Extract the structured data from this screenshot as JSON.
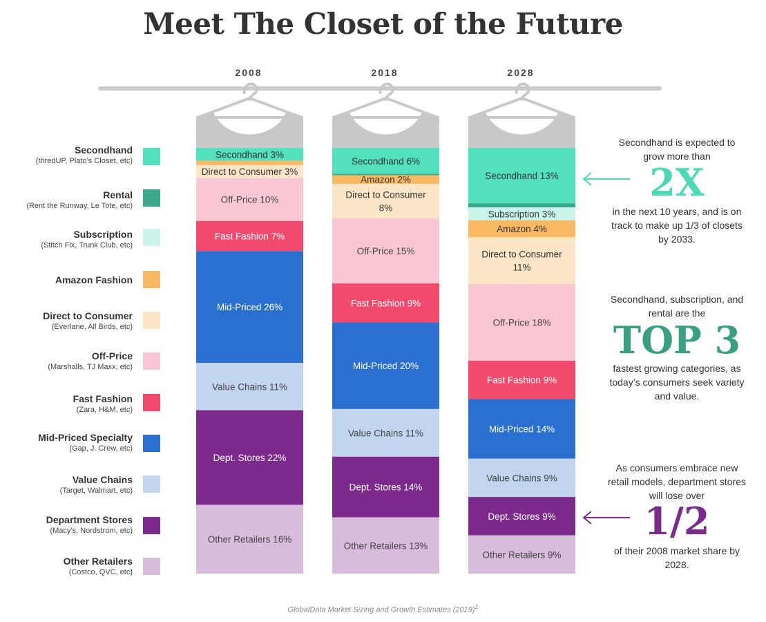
{
  "title": "Meet The Closet of the Future",
  "source": "GlobalData Market Sizing and Growth Estimates (2019)",
  "source_sup": "1",
  "legend": [
    {
      "name": "Secondhand",
      "sub": "(thredUP, Plato’s Closet, etc)",
      "color": "#52e0bd"
    },
    {
      "name": "Rental",
      "sub": "(Rent the Runway, Le Tote, etc)",
      "color": "#3aa88a"
    },
    {
      "name": "Subscription",
      "sub": "(Stitch Fix, Trunk Club, etc)",
      "color": "#c9f5ea"
    },
    {
      "name": "Amazon Fashion",
      "sub": "",
      "color": "#f9b864"
    },
    {
      "name": "Direct to Consumer",
      "sub": "(Everlane, All Birds, etc)",
      "color": "#fde6c7"
    },
    {
      "name": "Off-Price",
      "sub": "(Marshalls, TJ Maxx, etc)",
      "color": "#f9c7d3"
    },
    {
      "name": "Fast Fashion",
      "sub": "(Zara, H&M, etc)",
      "color": "#f24a6c"
    },
    {
      "name": "Mid-Priced Specialty",
      "sub": "(Gap, J. Crew, etc)",
      "color": "#2b70d1"
    },
    {
      "name": "Value Chains",
      "sub": "(Target, Walmart, etc)",
      "color": "#c1d5ef"
    },
    {
      "name": "Department Stores",
      "sub": "(Macy’s, Nordstrom, etc)",
      "color": "#7c2a8c"
    },
    {
      "name": "Other Retailers",
      "sub": "(Costco, QVC, etc)",
      "color": "#d8bcdc"
    }
  ],
  "notes": {
    "secondhand_top": "Secondhand is expected to grow more than",
    "secondhand_big": "2X",
    "secondhand_bottom": "in the next 10 years, and is on track to make up 1/3 of closets by 2033.",
    "top3_top": "Secondhand, subscription, and rental are the",
    "top3_big": "TOP 3",
    "top3_bottom": "fastest growing categories, as today’s consumers seek variety and value.",
    "dept_top": "As consumers embrace new retail models, department stores will lose over",
    "dept_big": "1/2",
    "dept_bottom": "of their 2008 market share by 2028.",
    "accent_teal": "#4fd8b6",
    "accent_green": "#3a9e83",
    "accent_purple": "#7c2a8c"
  },
  "chart_data": {
    "type": "bar",
    "stacked": true,
    "categories": [
      "2008",
      "2018",
      "2028"
    ],
    "unit": "%",
    "series": [
      {
        "name": "Secondhand",
        "values": [
          3,
          6,
          13
        ],
        "labels": [
          "Secondhand 3%",
          "Secondhand 6%",
          "Secondhand 13%"
        ],
        "color": "#52e0bd",
        "text": "#333333"
      },
      {
        "name": "Rental",
        "values": [
          0,
          0.3,
          1
        ],
        "labels": [
          "",
          "",
          ""
        ],
        "color": "#3aa88a",
        "text": "#ffffff"
      },
      {
        "name": "Subscription",
        "values": [
          0,
          0,
          3
        ],
        "labels": [
          "",
          "",
          "Subscription 3%"
        ],
        "color": "#c9f5ea",
        "text": "#333333"
      },
      {
        "name": "Amazon Fashion",
        "values": [
          1,
          2,
          4
        ],
        "labels": [
          "",
          "Amazon 2%",
          "Amazon 4%"
        ],
        "color": "#f9b864",
        "text": "#333333"
      },
      {
        "name": "Direct to Consumer",
        "values": [
          3,
          8,
          11
        ],
        "labels": [
          "Direct to Consumer 3%",
          "Direct to Consumer|8%",
          "Direct to Consumer|11%"
        ],
        "color": "#fde6c7",
        "text": "#333333"
      },
      {
        "name": "Off-Price",
        "values": [
          10,
          15,
          18
        ],
        "labels": [
          "Off-Price 10%",
          "Off-Price 15%",
          "Off-Price 18%"
        ],
        "color": "#f9c7d3",
        "text": "#444444"
      },
      {
        "name": "Fast Fashion",
        "values": [
          7,
          9,
          9
        ],
        "labels": [
          "Fast Fashion 7%",
          "Fast Fashion 9%",
          "Fast Fashion 9%"
        ],
        "color": "#f24a6c",
        "text": "#ffffff"
      },
      {
        "name": "Mid-Priced Specialty",
        "values": [
          26,
          20,
          14
        ],
        "labels": [
          "Mid-Priced 26%",
          "Mid-Priced 20%",
          "Mid-Priced 14%"
        ],
        "color": "#2b70d1",
        "text": "#ffffff"
      },
      {
        "name": "Value Chains",
        "values": [
          11,
          11,
          9
        ],
        "labels": [
          "Value Chains 11%",
          "Value Chains 11%",
          "Value Chains 9%"
        ],
        "color": "#c1d5ef",
        "text": "#444444"
      },
      {
        "name": "Department Stores",
        "values": [
          22,
          14,
          9
        ],
        "labels": [
          "Dept. Stores 22%",
          "Dept. Stores 14%",
          "Dept. Stores 9%"
        ],
        "color": "#7c2a8c",
        "text": "#ffffff"
      },
      {
        "name": "Other Retailers",
        "values": [
          16,
          13,
          9
        ],
        "labels": [
          "Other Retailers 16%",
          "Other Retailers 13%",
          "Other Retailers 9%"
        ],
        "color": "#d8bcdc",
        "text": "#444444"
      }
    ]
  }
}
